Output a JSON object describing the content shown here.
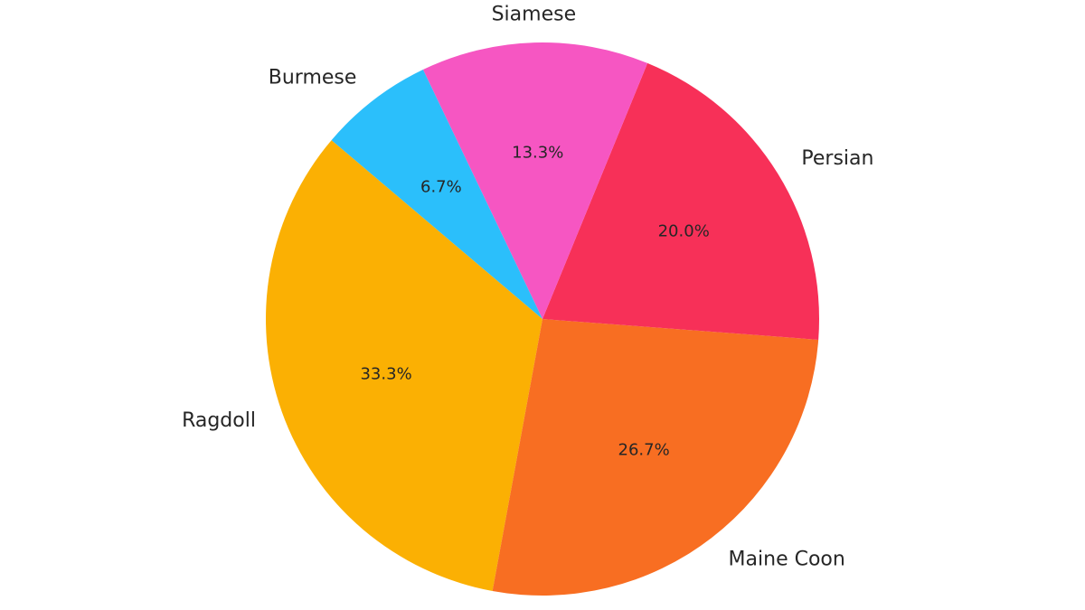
{
  "chart_data": {
    "type": "pie",
    "categories": [
      "Ragdoll",
      "Maine Coon",
      "Persian",
      "Siamese",
      "Burmese"
    ],
    "values": [
      33.3,
      26.7,
      20.0,
      13.3,
      6.7
    ],
    "value_labels": [
      "33.3%",
      "26.7%",
      "20.0%",
      "13.3%",
      "6.7%"
    ],
    "colors": [
      "#fbb003",
      "#f86e22",
      "#f73058",
      "#f656c2",
      "#2bbffb"
    ]
  }
}
